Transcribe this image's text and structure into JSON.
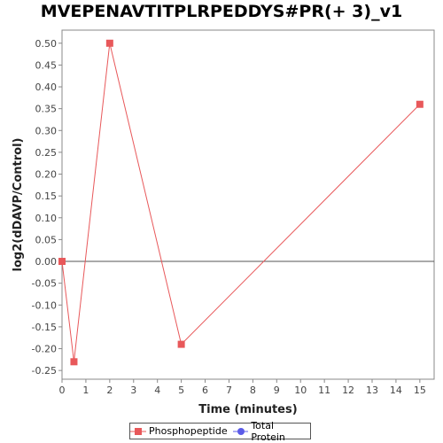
{
  "chart_data": {
    "type": "line",
    "title": "MVEPENAVTITPLRPEDDYS#PR(+ 3)_v1",
    "xlabel": "Time (minutes)",
    "ylabel": "log2(dDAVP/Control)",
    "xlim": [
      0,
      15.6
    ],
    "ylim": [
      -0.27,
      0.53
    ],
    "xticks": [
      0,
      1,
      2,
      3,
      4,
      5,
      6,
      7,
      8,
      9,
      10,
      11,
      12,
      13,
      14,
      15
    ],
    "yticks": [
      -0.25,
      -0.2,
      -0.15,
      -0.1,
      -0.05,
      0.0,
      0.05,
      0.1,
      0.15,
      0.2,
      0.25,
      0.3,
      0.35,
      0.4,
      0.45,
      0.5
    ],
    "zero_line": true,
    "grid": false,
    "legend_position": "bottom",
    "series": [
      {
        "name": "Phosphopeptide",
        "color": "#e8585a",
        "marker": "square",
        "points": [
          {
            "x": 0,
            "y": 0.0
          },
          {
            "x": 0.5,
            "y": -0.23
          },
          {
            "x": 2,
            "y": 0.5
          },
          {
            "x": 5,
            "y": -0.19
          },
          {
            "x": 15,
            "y": 0.36
          }
        ]
      },
      {
        "name": "Total Protein",
        "color": "#5b5be8",
        "marker": "circle",
        "points": []
      }
    ]
  }
}
